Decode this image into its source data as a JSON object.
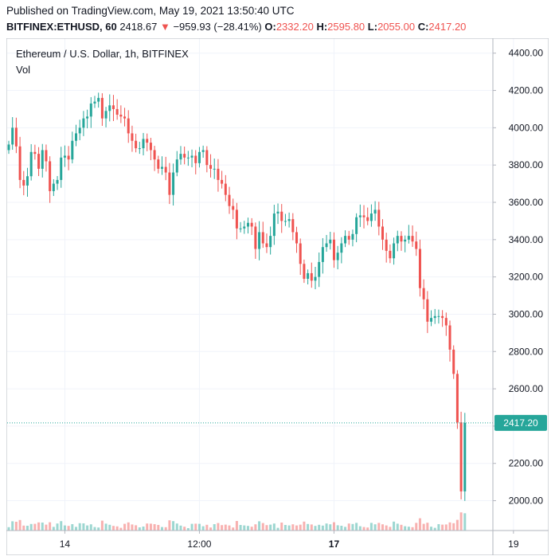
{
  "header": {
    "published": "Published on TradingView.com, May 19, 2021 13:50:40 UTC",
    "symbol": "BITFINEX:ETHUSD, 60",
    "last": "2418.67",
    "change_arrow": "▼",
    "change": "−959.93 (−28.41%)",
    "o_label": "O:",
    "o_value": "2332.20",
    "h_label": "H:",
    "h_value": "2595.80",
    "l_label": "L:",
    "l_value": "2055.00",
    "c_label": "C:",
    "c_value": "2417.20"
  },
  "legend": {
    "title": "Ethereum / U.S. Dollar, 1h, BITFINEX",
    "vol_label": "Vol"
  },
  "colors": {
    "up": "#26a69a",
    "down": "#ef5350",
    "grid": "#f0f3fa",
    "axis": "#b2b5be",
    "text": "#131722",
    "price_tag": "#26a69a"
  },
  "chart_data": {
    "type": "candlestick",
    "title": "Ethereum / U.S. Dollar, 1h, BITFINEX",
    "ylim": [
      1840,
      4480
    ],
    "yticks": [
      "4400.00",
      "4200.00",
      "4000.00",
      "3800.00",
      "3600.00",
      "3400.00",
      "3200.00",
      "3000.00",
      "2800.00",
      "2600.00",
      "2400.00",
      "2200.00",
      "2000.00"
    ],
    "xticks": [
      {
        "label": "14",
        "bar": 15,
        "bold": false
      },
      {
        "label": "12:00",
        "bar": 51,
        "bold": false
      },
      {
        "label": "17",
        "bar": 87,
        "bold": true
      },
      {
        "label": "19",
        "bar": 135,
        "bold": false
      }
    ],
    "grid": true,
    "last_price": "2417.20",
    "last_price_value": 2417.2,
    "candles_close": [
      3910,
      4000,
      3900,
      3720,
      3690,
      3740,
      3870,
      3860,
      3780,
      3880,
      3820,
      3660,
      3700,
      3720,
      3840,
      3850,
      3830,
      3930,
      3970,
      4000,
      4050,
      4060,
      4130,
      4140,
      4160,
      4050,
      4090,
      4120,
      4100,
      4070,
      4060,
      4050,
      3970,
      3930,
      3890,
      3890,
      3940,
      3920,
      3880,
      3830,
      3780,
      3790,
      3760,
      3640,
      3760,
      3830,
      3860,
      3840,
      3840,
      3850,
      3810,
      3870,
      3880,
      3800,
      3780,
      3780,
      3720,
      3700,
      3640,
      3580,
      3560,
      3460,
      3460,
      3470,
      3490,
      3470,
      3350,
      3440,
      3380,
      3360,
      3420,
      3540,
      3550,
      3500,
      3500,
      3510,
      3440,
      3380,
      3270,
      3190,
      3220,
      3180,
      3200,
      3280,
      3360,
      3380,
      3400,
      3290,
      3330,
      3380,
      3420,
      3400,
      3430,
      3520,
      3530,
      3520,
      3500,
      3540,
      3560,
      3470,
      3400,
      3340,
      3300,
      3380,
      3420,
      3390,
      3400,
      3420,
      3390,
      3350,
      3140,
      3080,
      2960,
      2980,
      2990,
      2990,
      2980,
      2940,
      2810,
      2680,
      2420,
      2050,
      2417
    ]
  }
}
